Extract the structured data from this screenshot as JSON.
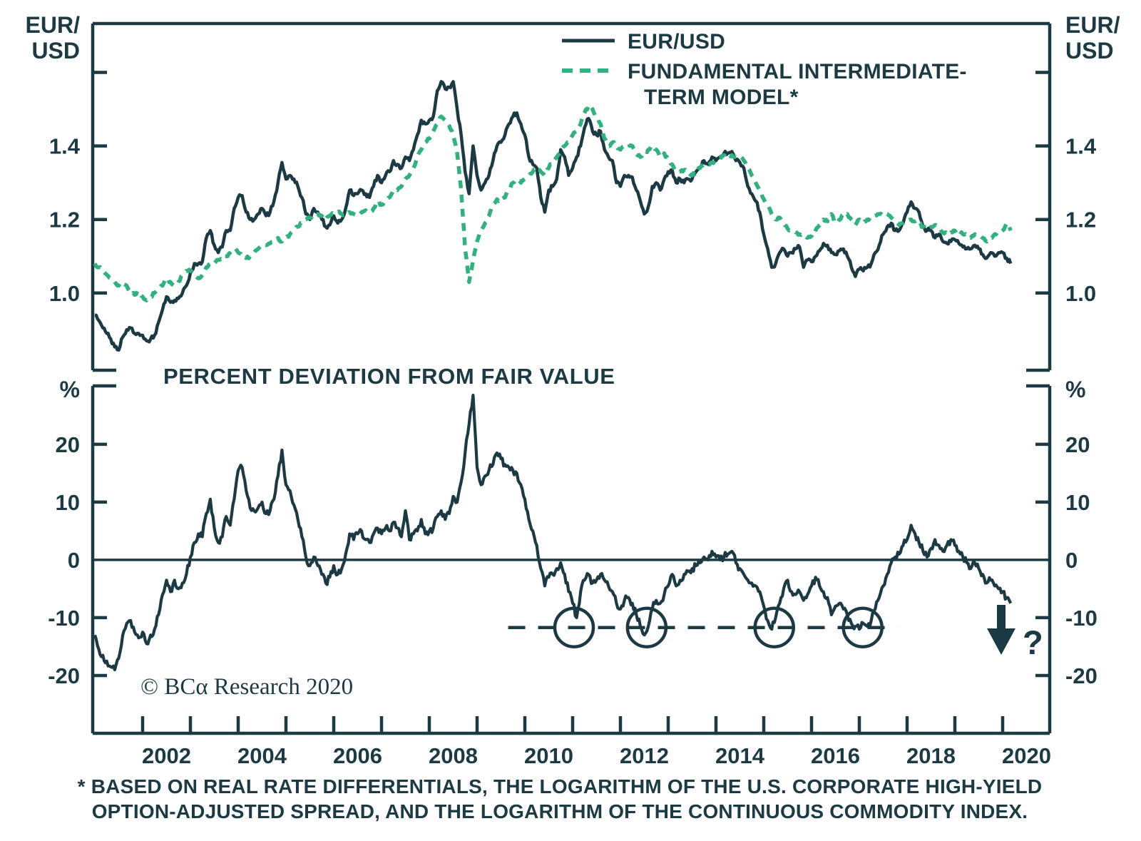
{
  "colors": {
    "ink": "#1b3a44",
    "green": "#2fb27d",
    "background": "#ffffff"
  },
  "corner_label_lines": [
    "EUR/",
    "USD"
  ],
  "pct_label": "%",
  "legend": {
    "items": [
      {
        "label": "EUR/USD",
        "style": "solid"
      },
      {
        "lines": [
          "FUNDAMENTAL INTERMEDIATE-",
          "TERM MODEL*"
        ],
        "style": "dashed"
      }
    ]
  },
  "panel2": {
    "title": "PERCENT DEVIATION FROM FAIR VALUE"
  },
  "copyright": "© BCα Research 2020",
  "footnote_lines": [
    "* BASED ON REAL RATE DIFFERENTIALS, THE LOGARITHM OF THE U.S. CORPORATE HIGH-YIELD",
    "OPTION-ADJUSTED SPREAD, AND THE LOGARITHM OF THE CONTINUOUS COMMODITY INDEX."
  ],
  "x_axis": {
    "range": [
      2001,
      2021
    ],
    "tick_years": [
      2002,
      2003,
      2004,
      2005,
      2006,
      2007,
      2008,
      2009,
      2010,
      2011,
      2012,
      2013,
      2014,
      2015,
      2016,
      2017,
      2018,
      2019,
      2020
    ],
    "label_years": [
      2002,
      2004,
      2006,
      2008,
      2010,
      2012,
      2014,
      2016,
      2018,
      2020
    ]
  },
  "chart_data": [
    {
      "type": "line",
      "panel": "top",
      "ylabel": "EUR/USD",
      "ylim": [
        0.79,
        1.733
      ],
      "yticks": [
        1.0,
        1.2,
        1.4
      ],
      "unlabeled_ytick": 1.6,
      "x_start": 2001.0,
      "x_step_years": 0.0833333,
      "series": [
        {
          "name": "EUR/USD",
          "color": "#1b3a44",
          "line_style": "solid",
          "values": [
            0.94,
            0.925,
            0.905,
            0.89,
            0.875,
            0.853,
            0.845,
            0.88,
            0.9,
            0.905,
            0.89,
            0.89,
            0.885,
            0.87,
            0.875,
            0.885,
            0.92,
            0.955,
            0.99,
            0.975,
            0.98,
            0.985,
            1.0,
            1.02,
            1.055,
            1.08,
            1.08,
            1.085,
            1.15,
            1.17,
            1.13,
            1.11,
            1.125,
            1.17,
            1.17,
            1.23,
            1.26,
            1.265,
            1.22,
            1.2,
            1.2,
            1.215,
            1.23,
            1.21,
            1.22,
            1.25,
            1.3,
            1.355,
            1.31,
            1.32,
            1.31,
            1.29,
            1.26,
            1.215,
            1.2,
            1.23,
            1.22,
            1.2,
            1.18,
            1.185,
            1.21,
            1.19,
            1.2,
            1.23,
            1.28,
            1.265,
            1.27,
            1.28,
            1.27,
            1.26,
            1.29,
            1.32,
            1.3,
            1.32,
            1.33,
            1.36,
            1.35,
            1.34,
            1.37,
            1.36,
            1.39,
            1.43,
            1.47,
            1.46,
            1.47,
            1.48,
            1.55,
            1.575,
            1.555,
            1.56,
            1.575,
            1.5,
            1.43,
            1.33,
            1.27,
            1.4,
            1.32,
            1.28,
            1.3,
            1.32,
            1.36,
            1.4,
            1.41,
            1.43,
            1.46,
            1.48,
            1.49,
            1.46,
            1.43,
            1.37,
            1.35,
            1.34,
            1.26,
            1.22,
            1.28,
            1.29,
            1.31,
            1.39,
            1.37,
            1.32,
            1.34,
            1.37,
            1.4,
            1.45,
            1.475,
            1.44,
            1.43,
            1.44,
            1.39,
            1.37,
            1.36,
            1.3,
            1.29,
            1.32,
            1.32,
            1.315,
            1.28,
            1.25,
            1.215,
            1.235,
            1.29,
            1.3,
            1.28,
            1.31,
            1.33,
            1.335,
            1.3,
            1.31,
            1.3,
            1.31,
            1.31,
            1.33,
            1.34,
            1.36,
            1.35,
            1.37,
            1.36,
            1.37,
            1.38,
            1.38,
            1.385,
            1.36,
            1.355,
            1.34,
            1.29,
            1.27,
            1.25,
            1.22,
            1.16,
            1.12,
            1.07,
            1.08,
            1.11,
            1.12,
            1.1,
            1.11,
            1.12,
            1.125,
            1.07,
            1.09,
            1.085,
            1.1,
            1.115,
            1.135,
            1.13,
            1.11,
            1.105,
            1.115,
            1.12,
            1.1,
            1.07,
            1.045,
            1.065,
            1.06,
            1.07,
            1.08,
            1.11,
            1.13,
            1.16,
            1.18,
            1.19,
            1.17,
            1.17,
            1.19,
            1.22,
            1.248,
            1.23,
            1.22,
            1.18,
            1.17,
            1.17,
            1.15,
            1.16,
            1.14,
            1.135,
            1.14,
            1.145,
            1.135,
            1.125,
            1.12,
            1.12,
            1.13,
            1.12,
            1.105,
            1.095,
            1.11,
            1.1,
            1.11,
            1.11,
            1.095,
            1.08
          ]
        },
        {
          "name": "FUNDAMENTAL INTERMEDIATE-TERM MODEL*",
          "color": "#2fb27d",
          "line_style": "dashed",
          "values": [
            1.08,
            1.07,
            1.06,
            1.05,
            1.04,
            1.03,
            1.02,
            1.03,
            1.02,
            1.0,
            0.995,
            1.005,
            0.99,
            0.98,
            0.99,
            1.0,
            1.01,
            1.02,
            1.04,
            1.03,
            1.02,
            1.03,
            1.05,
            1.06,
            1.06,
            1.05,
            1.04,
            1.05,
            1.07,
            1.08,
            1.08,
            1.09,
            1.09,
            1.1,
            1.11,
            1.12,
            1.11,
            1.1,
            1.095,
            1.1,
            1.11,
            1.12,
            1.125,
            1.13,
            1.135,
            1.14,
            1.15,
            1.14,
            1.15,
            1.16,
            1.17,
            1.18,
            1.19,
            1.2,
            1.205,
            1.21,
            1.215,
            1.21,
            1.2,
            1.21,
            1.215,
            1.22,
            1.215,
            1.21,
            1.22,
            1.215,
            1.21,
            1.22,
            1.225,
            1.22,
            1.23,
            1.25,
            1.24,
            1.25,
            1.26,
            1.28,
            1.28,
            1.29,
            1.31,
            1.32,
            1.34,
            1.37,
            1.39,
            1.41,
            1.42,
            1.44,
            1.46,
            1.48,
            1.47,
            1.455,
            1.43,
            1.38,
            1.28,
            1.12,
            1.03,
            1.09,
            1.14,
            1.17,
            1.19,
            1.21,
            1.24,
            1.255,
            1.25,
            1.26,
            1.28,
            1.3,
            1.31,
            1.3,
            1.31,
            1.32,
            1.33,
            1.34,
            1.33,
            1.32,
            1.34,
            1.36,
            1.37,
            1.385,
            1.4,
            1.41,
            1.43,
            1.44,
            1.46,
            1.49,
            1.51,
            1.5,
            1.48,
            1.46,
            1.42,
            1.4,
            1.41,
            1.4,
            1.39,
            1.4,
            1.405,
            1.4,
            1.38,
            1.37,
            1.38,
            1.39,
            1.4,
            1.39,
            1.37,
            1.38,
            1.36,
            1.35,
            1.33,
            1.33,
            1.335,
            1.33,
            1.32,
            1.33,
            1.34,
            1.35,
            1.35,
            1.355,
            1.36,
            1.37,
            1.375,
            1.37,
            1.375,
            1.37,
            1.37,
            1.36,
            1.34,
            1.32,
            1.3,
            1.28,
            1.255,
            1.24,
            1.215,
            1.2,
            1.205,
            1.19,
            1.175,
            1.17,
            1.165,
            1.16,
            1.155,
            1.15,
            1.155,
            1.17,
            1.185,
            1.2,
            1.195,
            1.215,
            1.19,
            1.2,
            1.215,
            1.215,
            1.2,
            1.185,
            1.2,
            1.19,
            1.2,
            1.205,
            1.21,
            1.215,
            1.21,
            1.215,
            1.205,
            1.195,
            1.185,
            1.19,
            1.195,
            1.2,
            1.195,
            1.19,
            1.18,
            1.175,
            1.18,
            1.185,
            1.18,
            1.165,
            1.16,
            1.165,
            1.17,
            1.165,
            1.16,
            1.155,
            1.15,
            1.16,
            1.155,
            1.15,
            1.14,
            1.15,
            1.16,
            1.165,
            1.17,
            1.19,
            1.17
          ]
        }
      ]
    },
    {
      "type": "line",
      "panel": "bottom",
      "title": "PERCENT DEVIATION FROM FAIR VALUE",
      "ylabel": "%",
      "ylim": [
        -30,
        30.1
      ],
      "yticks": [
        -20,
        -10,
        0,
        10,
        20
      ],
      "zero_line": true,
      "x_start": 2001.0,
      "x_step_years": 0.0833333,
      "series": [
        {
          "name": "PERCENT DEVIATION FROM FAIR VALUE",
          "color": "#1b3a44",
          "line_style": "solid",
          "values": [
            -13,
            -15.5,
            -16.5,
            -17.5,
            -18.5,
            -19,
            -17,
            -13,
            -11,
            -10.5,
            -12.5,
            -13.5,
            -12.5,
            -14.5,
            -13,
            -12,
            -9.5,
            -6,
            -3.5,
            -5.5,
            -3.5,
            -5,
            -4,
            -2.5,
            0.5,
            3,
            4.5,
            4,
            8,
            10.5,
            5.5,
            3,
            4,
            7.5,
            6,
            10.5,
            15.5,
            16,
            12,
            9,
            8.5,
            9,
            10,
            8,
            8.5,
            10.5,
            14.5,
            19,
            13,
            12,
            9.5,
            7,
            4,
            0.5,
            -1,
            0.5,
            -1,
            -2.5,
            -4,
            -3,
            -1,
            -2.5,
            -1.5,
            1,
            4.5,
            3.5,
            4.5,
            5,
            3.5,
            3,
            4.5,
            5.5,
            4.5,
            5.5,
            5,
            6.5,
            5.5,
            4,
            8.5,
            3.5,
            4.5,
            5,
            7,
            4.5,
            5,
            5.5,
            7.5,
            8.5,
            7,
            8,
            11,
            10,
            13.5,
            18.5,
            23.5,
            28.5,
            16,
            13,
            14.5,
            15.5,
            16.5,
            18.5,
            17.5,
            16.5,
            16,
            15.5,
            15,
            13,
            10.5,
            7,
            5,
            2.5,
            -1.5,
            -4.5,
            -3,
            -2.5,
            -1.5,
            -0.5,
            -2.5,
            -5.5,
            -7.5,
            -10,
            -5.5,
            -3.5,
            -2.5,
            -4,
            -3.5,
            -2.5,
            -3.5,
            -4.5,
            -5.5,
            -7.5,
            -8.5,
            -7,
            -6.5,
            -7.5,
            -9.5,
            -11.5,
            -13,
            -11.5,
            -8.5,
            -7,
            -7.5,
            -6,
            -4.5,
            -2.5,
            -4.5,
            -3.5,
            -2.5,
            -2,
            -1.5,
            -1,
            -0.5,
            0.5,
            0,
            1.5,
            0.5,
            0,
            0.5,
            1,
            1.5,
            -0.5,
            -1.5,
            -2.5,
            -3.5,
            -4,
            -4.5,
            -5.5,
            -8,
            -10.5,
            -12,
            -10,
            -7.5,
            -5,
            -3.5,
            -5.5,
            -6,
            -5.5,
            -7,
            -6,
            -4.5,
            -3,
            -4.5,
            -5.5,
            -6.5,
            -9.5,
            -8,
            -7.5,
            -8.5,
            -9.5,
            -11,
            -11.5,
            -12,
            -11,
            -11.5,
            -10.5,
            -8.5,
            -6.5,
            -4.5,
            -2.5,
            -0.5,
            0.5,
            1,
            2.5,
            3.5,
            6,
            4.5,
            3,
            1.5,
            0.5,
            2,
            3.5,
            2.5,
            1.5,
            2.5,
            3.5,
            2.5,
            1.5,
            0.5,
            -0.5,
            -1.5,
            -0.5,
            -1.5,
            -2.5,
            -4,
            -3.5,
            -4.5,
            -5,
            -5.5,
            -6.5,
            -7.5
          ]
        }
      ],
      "annotations": {
        "dashed_level": -11.7,
        "dashed_span_years": [
          2009.65,
          2017.8
        ],
        "circled_trough_years": [
          2011.03,
          2012.55,
          2015.22,
          2017.07
        ],
        "arrow_year": 2019.97,
        "arrow_label": "?"
      }
    }
  ]
}
